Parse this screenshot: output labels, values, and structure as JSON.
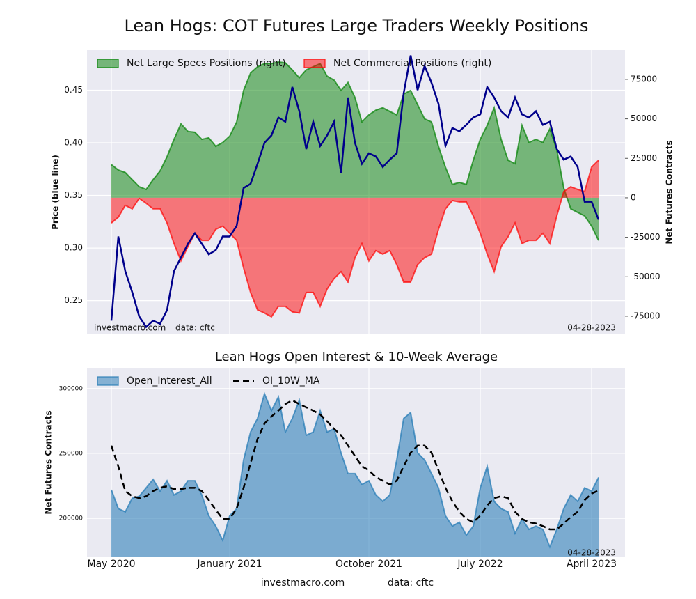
{
  "chart_data": [
    {
      "type": "area",
      "title": "Lean Hogs: COT Futures Large Traders Weekly Positions",
      "ylabel": "Price (blue line)",
      "y2label": "Net Futures Contracts",
      "ylim": [
        0.218,
        0.488
      ],
      "yticks": [
        0.25,
        {
          "value": 0.3,
          "label": "0.30"
        },
        0.35,
        {
          "value": 0.4,
          "label": "0.40"
        },
        0.45
      ],
      "y2lim": [
        -86500,
        93500
      ],
      "y2ticks": [
        -75000,
        -50000,
        -25000,
        0,
        25000,
        50000,
        75000
      ],
      "grid": true,
      "legend": "upper left",
      "annotations": [
        "investmacro.com",
        "data: cftc",
        "04-28-2023"
      ],
      "series": [
        {
          "name": "Net Large Specs Positions (right)",
          "type": "area",
          "axis": "y2",
          "color": "#008000",
          "values": [
            21000,
            17600,
            16000,
            11500,
            7000,
            5300,
            11500,
            17000,
            26000,
            37000,
            46800,
            42000,
            41500,
            37000,
            38000,
            32600,
            35000,
            39000,
            48000,
            68000,
            79000,
            83000,
            85000,
            85000,
            86000,
            85500,
            81000,
            76000,
            81000,
            83000,
            85000,
            77000,
            74500,
            68000,
            73000,
            63500,
            48000,
            52500,
            55500,
            57000,
            54700,
            52500,
            65700,
            68000,
            59000,
            50000,
            48000,
            32600,
            19400,
            8400,
            9700,
            8400,
            23800,
            37000,
            45900,
            57000,
            37000,
            23800,
            21600,
            45900,
            35000,
            37000,
            35000,
            43700,
            30400,
            6200,
            -7000,
            -9300,
            -11500,
            -18000,
            -27000
          ]
        },
        {
          "name": "Net Commercial Positions (right)",
          "type": "area",
          "axis": "y2",
          "color": "#ff0000",
          "values": [
            -16000,
            -12300,
            -4800,
            -7000,
            -400,
            -3500,
            -7000,
            -7000,
            -16000,
            -29000,
            -40000,
            -31000,
            -22500,
            -27000,
            -27000,
            -20000,
            -18000,
            -22500,
            -27000,
            -44500,
            -60000,
            -71000,
            -73000,
            -75400,
            -68800,
            -68800,
            -72300,
            -73000,
            -60000,
            -60000,
            -68800,
            -57800,
            -51200,
            -46800,
            -53400,
            -38000,
            -29000,
            -40000,
            -33500,
            -35700,
            -33500,
            -42300,
            -53400,
            -53400,
            -42300,
            -38000,
            -35700,
            -20000,
            -7000,
            -1800,
            -2600,
            -2600,
            -11500,
            -22500,
            -35700,
            -46800,
            -31000,
            -24700,
            -16000,
            -29000,
            -27000,
            -27000,
            -22500,
            -29000,
            -11500,
            4000,
            7000,
            5300,
            4000,
            19400,
            23800
          ]
        },
        {
          "type": "line",
          "axis": "y",
          "color": "#00008b",
          "values": [
            0.231,
            0.311,
            0.278,
            0.258,
            0.235,
            0.225,
            0.231,
            0.228,
            0.241,
            0.278,
            0.291,
            0.304,
            0.314,
            0.304,
            0.294,
            0.298,
            0.311,
            0.311,
            0.321,
            0.357,
            0.361,
            0.38,
            0.4,
            0.407,
            0.424,
            0.42,
            0.453,
            0.43,
            0.394,
            0.42,
            0.397,
            0.407,
            0.42,
            0.371,
            0.443,
            0.4,
            0.38,
            0.39,
            0.387,
            0.377,
            0.384,
            0.39,
            0.447,
            0.483,
            0.45,
            0.473,
            0.457,
            0.437,
            0.397,
            0.414,
            0.411,
            0.417,
            0.424,
            0.427,
            0.453,
            0.443,
            0.43,
            0.424,
            0.443,
            0.427,
            0.424,
            0.43,
            0.417,
            0.42,
            0.394,
            0.384,
            0.387,
            0.377,
            0.344,
            0.344,
            0.327
          ]
        }
      ]
    },
    {
      "type": "area",
      "title": "Lean Hogs Open Interest & 10-Week Average",
      "ylabel": "Net Futures Contracts",
      "ylim": [
        170000,
        316000
      ],
      "yticks": [
        200000,
        250000,
        300000
      ],
      "grid": true,
      "legend": "upper left",
      "annotations": [
        "04-28-2023",
        "investmacro.com",
        "data: cftc"
      ],
      "categories": [
        "May 2020",
        null,
        null,
        null,
        null,
        null,
        null,
        null,
        null,
        null,
        null,
        null,
        null,
        null,
        null,
        null,
        null,
        "January 2021",
        null,
        null,
        null,
        null,
        null,
        null,
        null,
        null,
        null,
        null,
        null,
        null,
        null,
        null,
        null,
        null,
        null,
        null,
        null,
        "October 2021",
        null,
        null,
        null,
        null,
        null,
        null,
        null,
        null,
        null,
        null,
        null,
        null,
        null,
        null,
        null,
        "July 2022",
        null,
        null,
        null,
        null,
        null,
        null,
        null,
        null,
        null,
        null,
        null,
        null,
        null,
        null,
        null,
        "April 2023",
        null
      ],
      "series": [
        {
          "name": "Open_Interest_All",
          "type": "area",
          "axis": "y",
          "color": "#1f77b4",
          "values": [
            222000,
            207500,
            205000,
            215500,
            217000,
            223500,
            230000,
            221000,
            229000,
            218000,
            221000,
            229000,
            229000,
            218000,
            202000,
            194000,
            183000,
            202000,
            207500,
            245000,
            266500,
            277000,
            296000,
            283000,
            293500,
            266500,
            277000,
            291000,
            264000,
            266500,
            283000,
            266500,
            269000,
            250500,
            234500,
            234500,
            226000,
            229000,
            218000,
            213000,
            218000,
            245000,
            277000,
            281500,
            250500,
            245000,
            234500,
            223500,
            202000,
            194000,
            197000,
            187000,
            194000,
            223500,
            240000,
            213000,
            207500,
            205000,
            188500,
            199500,
            191500,
            194000,
            191500,
            178000,
            191500,
            207500,
            218000,
            213000,
            223500,
            221000,
            231500
          ]
        },
        {
          "name": "OI_10W_MA",
          "type": "line",
          "axis": "y",
          "color": "#000000",
          "dash": true,
          "values": [
            256000,
            240000,
            221000,
            217000,
            215500,
            217000,
            221000,
            223500,
            224700,
            222500,
            222500,
            223500,
            223500,
            221000,
            214000,
            206500,
            199500,
            199500,
            207500,
            223500,
            242500,
            261000,
            273000,
            278500,
            283000,
            288000,
            291000,
            288000,
            285500,
            283000,
            280000,
            274700,
            269000,
            264000,
            256000,
            248000,
            240000,
            237000,
            231700,
            229000,
            226000,
            229000,
            240000,
            250500,
            256000,
            256000,
            250500,
            237000,
            223500,
            213000,
            205000,
            199500,
            197000,
            202000,
            210000,
            215500,
            217000,
            215500,
            205000,
            199500,
            197000,
            196000,
            194000,
            191500,
            191500,
            196000,
            201000,
            205000,
            214000,
            219000,
            221500
          ]
        }
      ]
    }
  ]
}
